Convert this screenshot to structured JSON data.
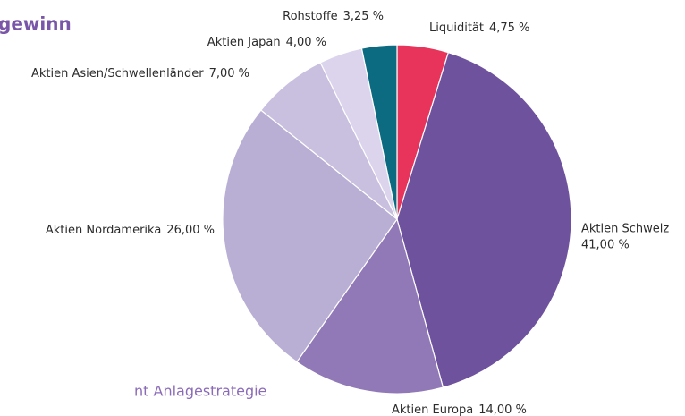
{
  "chart_data": {
    "type": "pie",
    "title": "gewinn",
    "subtitle": "nt Anlagestrategie",
    "categories": [
      "Liquidität",
      "Aktien Schweiz",
      "Aktien Europa",
      "Aktien Nordamerika",
      "Aktien Asien/Schwellenländer",
      "Aktien Japan",
      "Rohstoffe"
    ],
    "values": [
      4.75,
      41,
      14,
      26,
      7,
      4,
      3.25
    ],
    "value_labels": [
      "4,75 %",
      "41,00 %",
      "14,00 %",
      "26,00 %",
      "7,00 %",
      "4,00 %",
      "3,25 %"
    ],
    "colors": [
      "#e8345a",
      "#6e529e",
      "#9079b6",
      "#b9aed4",
      "#c9c0e0",
      "#dbd4ec",
      "#0c6b80"
    ]
  }
}
